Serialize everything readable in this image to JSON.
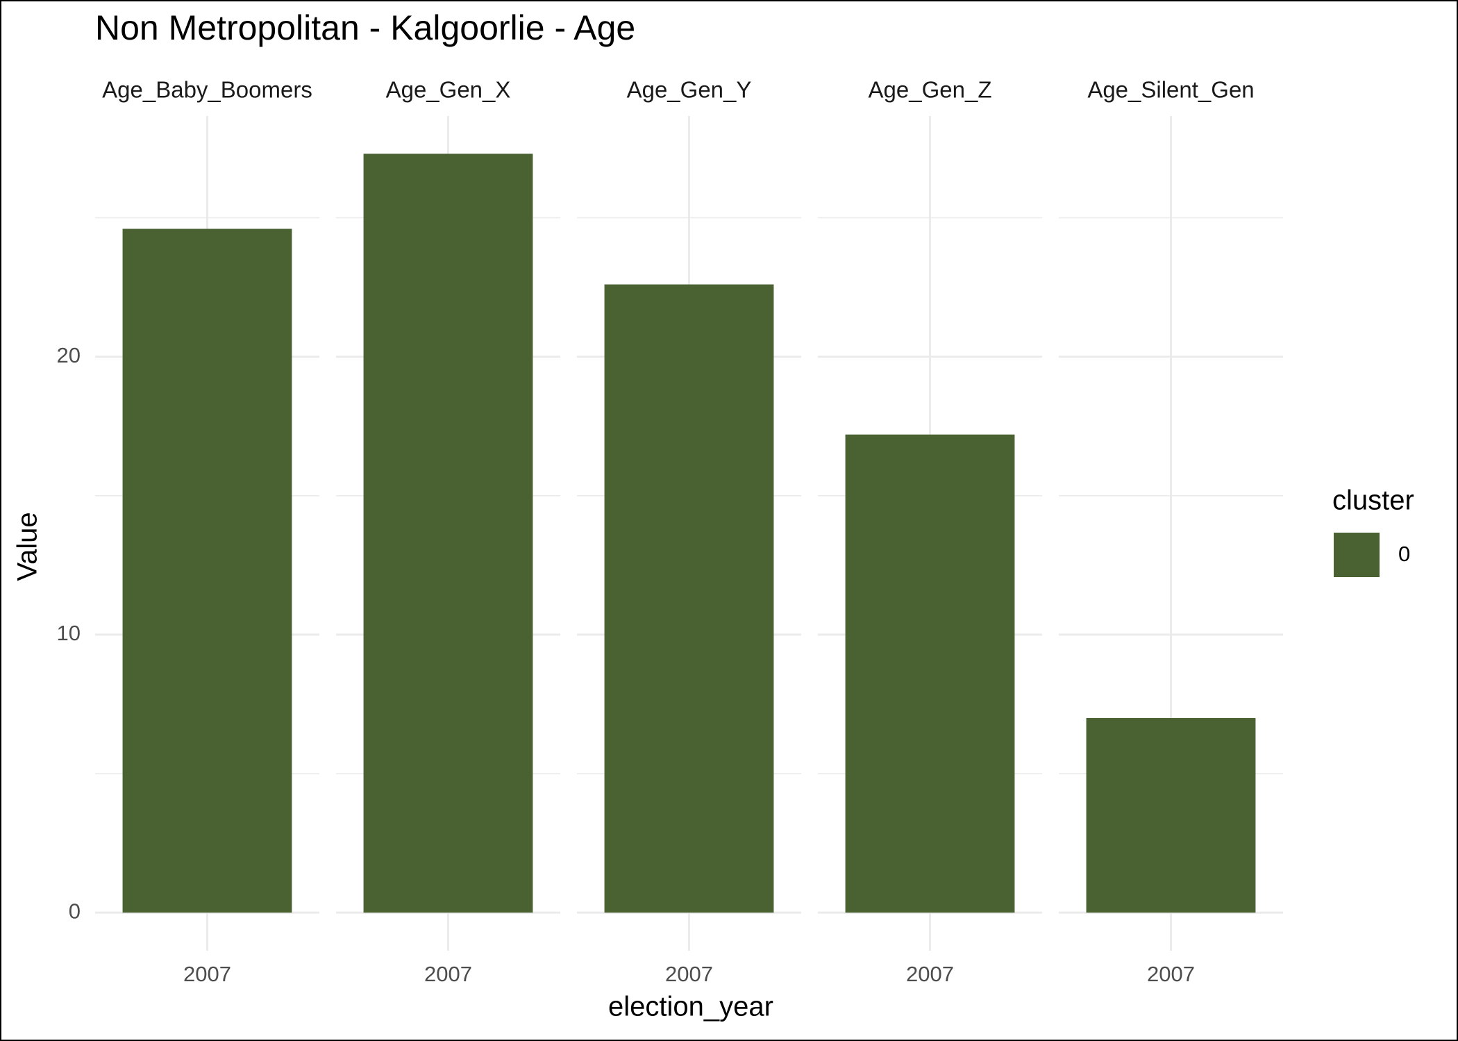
{
  "chart_data": {
    "type": "bar",
    "title": "Non Metropolitan - Kalgoorlie - Age",
    "xlabel": "election_year",
    "ylabel": "Value",
    "color": "#4a6132",
    "legend": {
      "title": "cluster",
      "position": "right",
      "entries": [
        "0"
      ]
    },
    "facets": [
      {
        "title": "Age_Baby_Boomers",
        "categories": [
          "2007"
        ],
        "values": [
          24.6
        ]
      },
      {
        "title": "Age_Gen_X",
        "categories": [
          "2007"
        ],
        "values": [
          27.3
        ]
      },
      {
        "title": "Age_Gen_Y",
        "categories": [
          "2007"
        ],
        "values": [
          22.6
        ]
      },
      {
        "title": "Age_Gen_Z",
        "categories": [
          "2007"
        ],
        "values": [
          17.2
        ]
      },
      {
        "title": "Age_Silent_Gen",
        "categories": [
          "2007"
        ],
        "values": [
          7.0
        ]
      }
    ],
    "ylim": [
      -1.37,
      28.66
    ],
    "yticks": [
      0,
      10,
      20
    ],
    "yminor": [
      5,
      15,
      25
    ],
    "grid": true
  }
}
